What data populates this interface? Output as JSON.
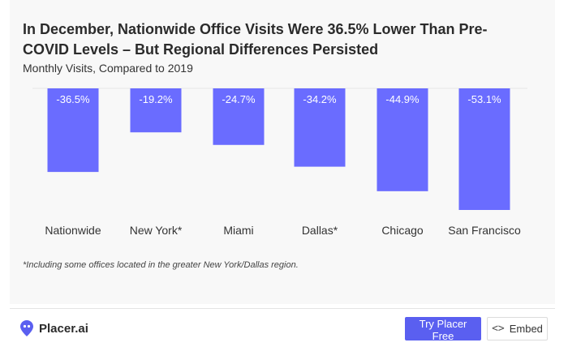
{
  "chart_data": {
    "type": "bar",
    "title": "In December, Nationwide Office Visits Were 36.5% Lower Than Pre-COVID Levels – But Regional Differences Persisted",
    "subtitle": "Monthly Visits, Compared to 2019",
    "categories": [
      "Nationwide",
      "New York*",
      "Miami",
      "Dallas*",
      "Chicago",
      "San Francisco"
    ],
    "values": [
      -36.5,
      -19.2,
      -24.7,
      -34.2,
      -44.9,
      -53.1
    ],
    "value_labels": [
      "-36.5%",
      "-19.2%",
      "-24.7%",
      "-34.2%",
      "-44.9%",
      "-53.1%"
    ],
    "xlabel": "",
    "ylabel": "",
    "ylim": [
      -53.1,
      0
    ],
    "grid": false,
    "legend": "none",
    "bar_color": "#6a6cff"
  },
  "footnote": "*Including some offices located in the greater New York/Dallas region.",
  "footer": {
    "logo_text": "Placer.ai",
    "logo_icon": "placer-pin-icon",
    "try_button": "Try Placer Free",
    "embed_button": "Embed",
    "embed_icon": "code-icon"
  }
}
